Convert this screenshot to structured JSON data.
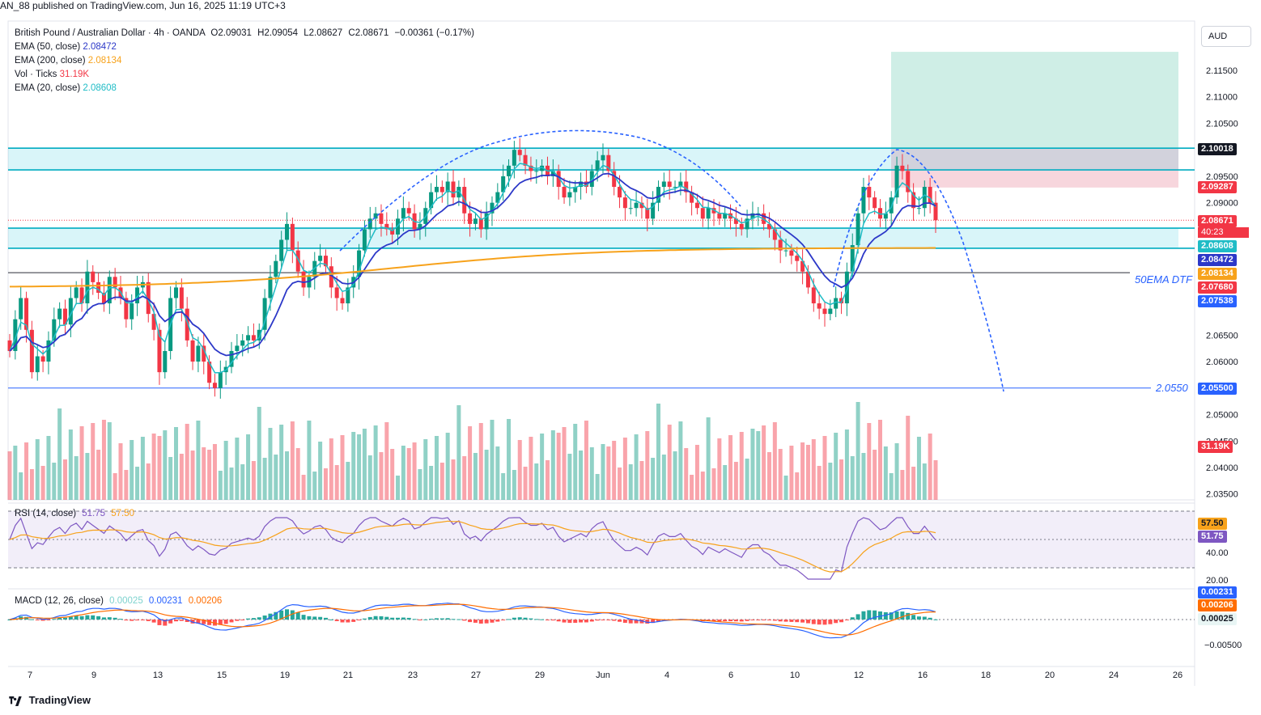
{
  "header": {
    "published": "AN_88 published on TradingView.com, Jun 16, 2025 11:19 UTC+3",
    "symbol": "British Pound / Australian Dollar · 4h · OANDA",
    "ohlc": {
      "O": "O2.09031",
      "H": "H2.09054",
      "L": "L2.08627",
      "C": "C2.08671",
      "change": "−0.00361 (−0.17%)"
    },
    "indicators": [
      {
        "label": "EMA (50, close)",
        "value": "2.08472",
        "color": "#2c38c8"
      },
      {
        "label": "EMA (200, close)",
        "value": "2.08134",
        "color": "#f7a21b"
      },
      {
        "label": "Vol · Ticks",
        "value": "31.19K",
        "color": "#f23645"
      },
      {
        "label": "EMA (20, close)",
        "value": "2.08608",
        "color": "#1fbcc6"
      }
    ]
  },
  "currency": "AUD",
  "price_labels": [
    {
      "text": "2.10018",
      "price": 2.10018,
      "bg": "#131722"
    },
    {
      "text": "2.09287",
      "price": 2.09287,
      "bg": "#f23645"
    },
    {
      "text": "2.08671",
      "price": 2.08671,
      "bg": "#f23645",
      "sub": "40:23"
    },
    {
      "text": "2.08608",
      "price": 2.08608,
      "bg": "#1fbcc6"
    },
    {
      "text": "2.08472",
      "price": 2.08472,
      "bg": "#2c38c8"
    },
    {
      "text": "2.08134",
      "price": 2.08134,
      "bg": "#f7a21b"
    },
    {
      "text": "2.07680",
      "price": 2.0768,
      "bg": "#f23645"
    },
    {
      "text": "2.07538",
      "price": 2.07538,
      "bg": "#2962ff"
    },
    {
      "text": "2.05500",
      "price": 2.055,
      "bg": "#2962ff"
    },
    {
      "text": "31.19K",
      "price": null,
      "bg": "#f23645"
    }
  ],
  "annotations": {
    "ema_line_label": "50EMA DTF",
    "support_label": "2.0550"
  },
  "rsi": {
    "label": "RSI (14, close)",
    "value": "51.75",
    "ma": "57.50",
    "axis": [
      "40.00",
      "20.00"
    ]
  },
  "macd": {
    "label": "MACD (12, 26, close)",
    "hist": "0.00025",
    "macd": "0.00231",
    "signal": "0.00206",
    "axis": [
      "−0.00500"
    ]
  },
  "brand": "TradingView",
  "chart_data": {
    "type": "candlestick",
    "y_axis_ticks": [
      "2.11500",
      "2.11000",
      "2.10500",
      "2.09500",
      "2.09000",
      "2.06500",
      "2.06000",
      "2.05000",
      "2.04500",
      "2.04000",
      "2.03500"
    ],
    "x_axis_ticks": [
      "7",
      "9",
      "13",
      "15",
      "19",
      "21",
      "23",
      "27",
      "29",
      "Jun",
      "4",
      "6",
      "10",
      "12",
      "16",
      "18",
      "20",
      "24",
      "26"
    ],
    "ylim": [
      2.031,
      2.1185
    ],
    "zones": [
      {
        "name": "resistance",
        "low": 2.0962,
        "high": 2.1003
      },
      {
        "name": "support",
        "low": 2.0814,
        "high": 2.0852
      }
    ],
    "levels": [
      2.10018,
      2.0768,
      2.055
    ],
    "trade_box": {
      "entry": 2.10018,
      "target_top": 2.1185,
      "stop": 2.09287
    },
    "closes": [
      2.062,
      2.068,
      2.072,
      2.066,
      2.058,
      2.061,
      2.06,
      2.064,
      2.068,
      2.07,
      2.067,
      2.072,
      2.074,
      2.071,
      2.077,
      2.075,
      2.073,
      2.071,
      2.076,
      2.074,
      2.072,
      2.068,
      2.071,
      2.074,
      2.075,
      2.069,
      2.066,
      2.058,
      2.062,
      2.072,
      2.074,
      2.07,
      2.064,
      2.06,
      2.063,
      2.06,
      2.056,
      2.055,
      2.058,
      2.059,
      2.062,
      2.063,
      2.064,
      2.065,
      2.064,
      2.066,
      2.072,
      2.076,
      2.079,
      2.083,
      2.086,
      2.081,
      2.077,
      2.074,
      2.076,
      2.079,
      2.08,
      2.078,
      2.074,
      2.072,
      2.071,
      2.074,
      2.076,
      2.081,
      2.085,
      2.087,
      2.088,
      2.086,
      2.085,
      2.084,
      2.087,
      2.089,
      2.088,
      2.085,
      2.086,
      2.089,
      2.092,
      2.093,
      2.092,
      2.094,
      2.091,
      2.093,
      2.088,
      2.086,
      2.087,
      2.085,
      2.088,
      2.09,
      2.092,
      2.095,
      2.097,
      2.1,
      2.099,
      2.097,
      2.096,
      2.096,
      2.097,
      2.095,
      2.096,
      2.093,
      2.091,
      2.092,
      2.093,
      2.094,
      2.093,
      2.096,
      2.098,
      2.099,
      2.096,
      2.093,
      2.091,
      2.089,
      2.089,
      2.09,
      2.089,
      2.087,
      2.09,
      2.093,
      2.094,
      2.093,
      2.093,
      2.094,
      2.092,
      2.09,
      2.089,
      2.087,
      2.089,
      2.088,
      2.087,
      2.088,
      2.087,
      2.086,
      2.085,
      2.087,
      2.088,
      2.088,
      2.086,
      2.085,
      2.083,
      2.081,
      2.081,
      2.08,
      2.079,
      2.077,
      2.074,
      2.071,
      2.07,
      2.069,
      2.07,
      2.072,
      2.071,
      2.077,
      2.082,
      2.088,
      2.093,
      2.091,
      2.089,
      2.087,
      2.088,
      2.091,
      2.097,
      2.096,
      2.092,
      2.089,
      2.089,
      2.093,
      2.09,
      2.0867
    ]
  }
}
